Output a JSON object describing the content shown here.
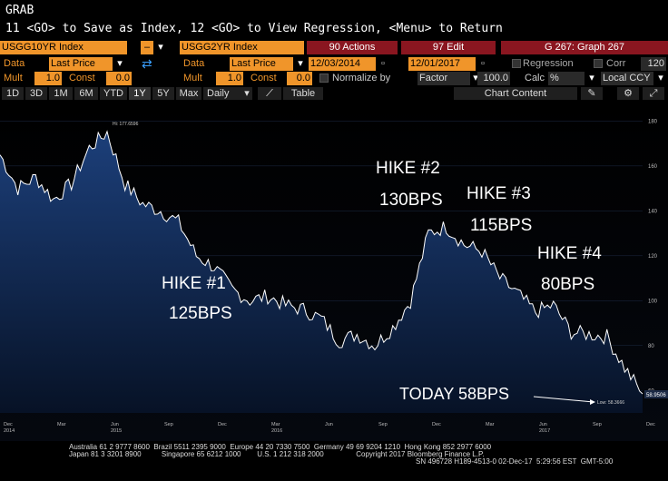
{
  "command": {
    "line1": "GRAB",
    "line2": "11 <GO> to Save as Index, 12 <GO> to View Regression, <Menu> to Return"
  },
  "toolbar": {
    "security1": "USGG10YR Index",
    "op": "–",
    "security2": "USGG2YR Index",
    "actions": "90 Actions",
    "edit": "97 Edit",
    "graph": "G 267: Graph 267"
  },
  "row2": {
    "data_label": "Data",
    "data1_value": "Last Price",
    "data_label2": "Data",
    "data2_value": "Last Price",
    "start_date": "12/03/2014",
    "end_date": "12/01/2017",
    "regression": "Regression",
    "corr": "Corr",
    "corr_value": "120"
  },
  "row3": {
    "mult_label": "Mult",
    "mult1": "1.0",
    "const_label": "Const",
    "const1": "0.0",
    "mult_label2": "Mult",
    "mult2": "1.0",
    "const_label2": "Const",
    "const2": "0.0",
    "normalize": "Normalize by",
    "factor": "Factor",
    "factor_value": "100.0",
    "calc_label": "Calc",
    "calc_value": "%",
    "ccy": "Local CCY"
  },
  "period_bar": {
    "buttons": [
      "1D",
      "3D",
      "1M",
      "6M",
      "YTD",
      "1Y",
      "5Y",
      "Max"
    ],
    "active": "1Y",
    "daily": "Daily",
    "table": "Table",
    "chart_content": "Chart Content"
  },
  "chart_data": {
    "type": "area",
    "series": [
      {
        "x": [
          "2014-12",
          "2015-01",
          "2015-02",
          "2015-03",
          "2015-04",
          "2015-05",
          "2015-06",
          "2015-07",
          "2015-08",
          "2015-09",
          "2015-10",
          "2015-11",
          "2015-12",
          "2016-01",
          "2016-02",
          "2016-03",
          "2016-04",
          "2016-05",
          "2016-06",
          "2016-07",
          "2016-08",
          "2016-09",
          "2016-10",
          "2016-11",
          "2016-12",
          "2017-01",
          "2017-02",
          "2017-03",
          "2017-04",
          "2017-05",
          "2017-06",
          "2017-07",
          "2017-08",
          "2017-09",
          "2017-10",
          "2017-11",
          "2017-12"
        ],
        "values": [
          165,
          150,
          155,
          145,
          152,
          168,
          175,
          152,
          143,
          140,
          135,
          120,
          115,
          105,
          100,
          102,
          98,
          96,
          92,
          82,
          85,
          80,
          88,
          100,
          130,
          133,
          125,
          122,
          110,
          103,
          95,
          98,
          86,
          85,
          84,
          70,
          58.5
        ]
      }
    ],
    "ylim": [
      50,
      185
    ],
    "y_ticks": [
      "180",
      "160",
      "140",
      "120",
      "100",
      "80",
      "60"
    ],
    "x_ticks": [
      "Dec\n2014",
      "Mar",
      "Jun\n2015",
      "Sep",
      "Dec",
      "Mar\n2016",
      "Jun",
      "Sep",
      "Dec",
      "Mar",
      "Jun\n2017",
      "Sep",
      "Dec"
    ],
    "hi_label": "Hi: 177.6596",
    "low_label": "Low: 58.3666",
    "last_value": "58.9506",
    "annotations": [
      {
        "line1": "HIKE #1",
        "line2": "125BPS"
      },
      {
        "line1": "HIKE #2",
        "line2": "130BPS"
      },
      {
        "line1": "HIKE #3",
        "line2": "115BPS"
      },
      {
        "line1": "HIKE #4",
        "line2": "80BPS"
      },
      {
        "line1": "TODAY 58BPS",
        "line2": ""
      }
    ],
    "colors": {
      "fill_top": "#1c3f7a",
      "fill_bottom": "#071226",
      "line": "#ffffff"
    }
  },
  "footer": {
    "line1": "Australia 61 2 9777 8600  Brazil 5511 2395 9000  Europe 44 20 7330 7500  Germany 49 69 9204 1210  Hong Kong 852 2977 6000",
    "line2": "Japan 81 3 3201 8900          Singapore 65 6212 1000        U.S. 1 212 318 2000                Copyright 2017 Bloomberg Finance L.P.",
    "line3": "SN 496728 H189-4513-0 02-Dec-17  5:29:56 EST  GMT-5:00"
  }
}
